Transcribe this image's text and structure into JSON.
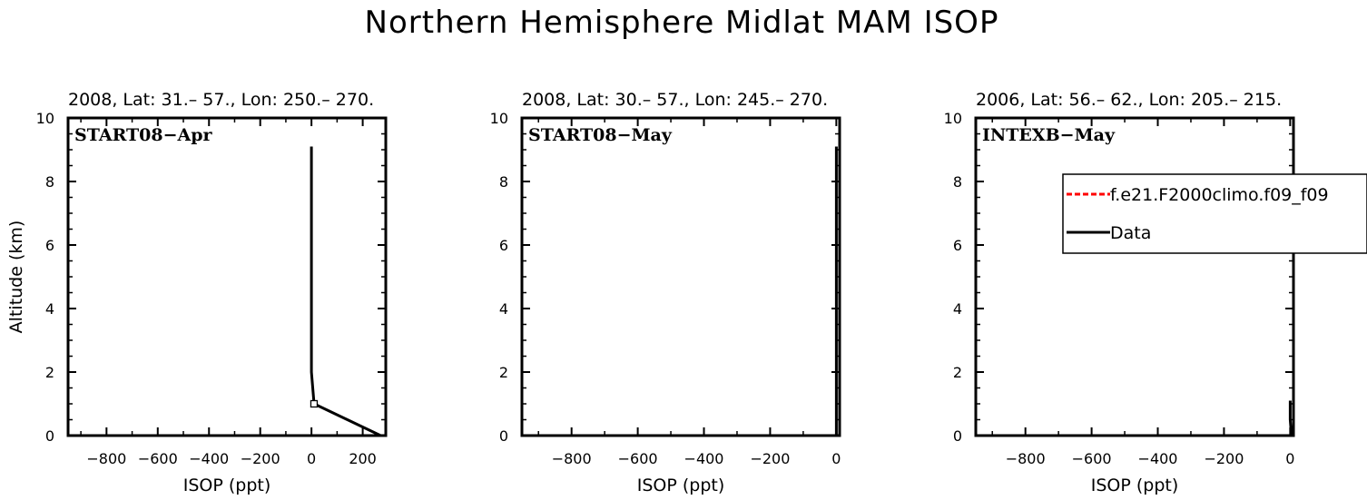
{
  "title": "Northern Hemisphere Midlat MAM ISOP",
  "chart_data": [
    {
      "type": "line",
      "header": "2008, Lat:  31.–  57., Lon: 250.–  270.",
      "panel_label": "START08−Apr",
      "xlabel": "ISOP (ppt)",
      "ylabel": "Altitude (km)",
      "xlim": [
        -950,
        290
      ],
      "ylim": [
        0,
        10
      ],
      "xticks": [
        -800,
        -600,
        -400,
        -200,
        0,
        200
      ],
      "yticks": [
        0,
        2,
        4,
        6,
        8,
        10
      ],
      "series": [
        {
          "points": [
            [
              0,
              9.1
            ],
            [
              0,
              5.0
            ],
            [
              0,
              2.0
            ],
            [
              10,
              1.0
            ],
            [
              270,
              0.0
            ]
          ]
        }
      ],
      "markers": [
        [
          10,
          1.0
        ]
      ]
    },
    {
      "type": "line",
      "header": "2008, Lat:  30.–  57., Lon: 245.–  270.",
      "panel_label": "START08−May",
      "xlabel": "ISOP (ppt)",
      "ylabel": "",
      "xlim": [
        -950,
        10
      ],
      "ylim": [
        0,
        10
      ],
      "xticks": [
        -800,
        -600,
        -400,
        -200,
        0
      ],
      "yticks": [
        0,
        2,
        4,
        6,
        8,
        10
      ],
      "series": [
        {
          "points": [
            [
              0,
              9.1
            ],
            [
              0,
              5.0
            ],
            [
              0,
              2.0
            ],
            [
              0,
              0.0
            ]
          ]
        }
      ],
      "markers": []
    },
    {
      "type": "line",
      "header": "2006, Lat: 56.–  62., Lon: 205.–  215.",
      "panel_label": "INTEXB−May",
      "xlabel": "ISOP (ppt)",
      "ylabel": "",
      "xlim": [
        -950,
        10
      ],
      "ylim": [
        0,
        10
      ],
      "xticks": [
        -800,
        -600,
        -400,
        -200,
        0
      ],
      "yticks": [
        0,
        2,
        4,
        6,
        8,
        10
      ],
      "series": [
        {
          "points": [
            [
              0,
              1.1
            ],
            [
              0,
              0.5
            ],
            [
              4,
              0.0
            ]
          ]
        }
      ],
      "markers": [],
      "legend": {
        "placement": "top-right",
        "entries": [
          {
            "name": "f.e21.F2000climo.f09_f09",
            "color": "#ff0000",
            "dash": true
          },
          {
            "name": "Data",
            "color": "#000000",
            "dash": false
          }
        ]
      }
    }
  ]
}
